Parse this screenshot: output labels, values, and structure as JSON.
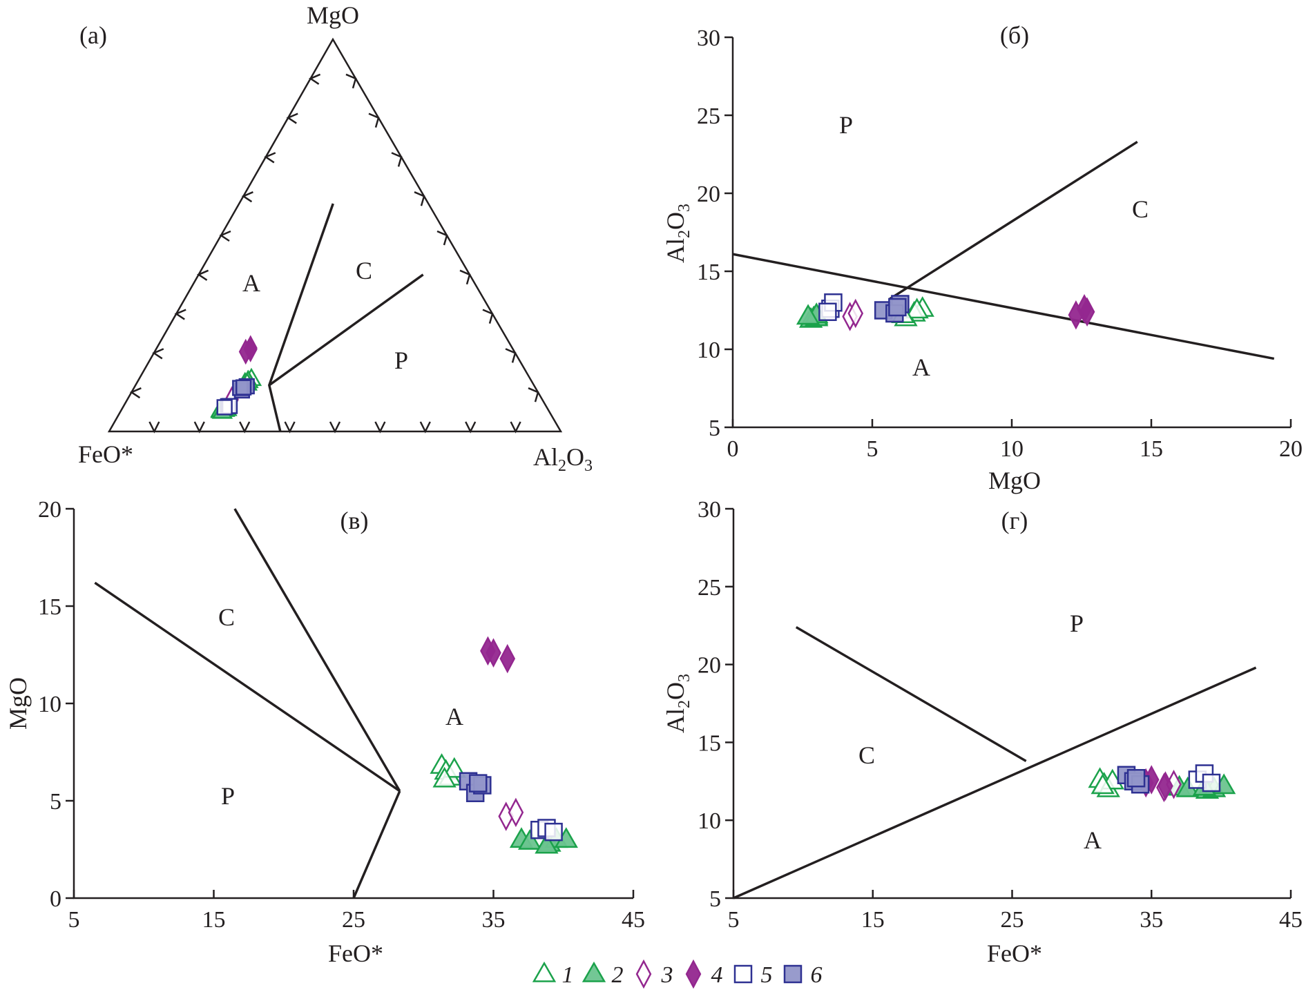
{
  "styles": {
    "green": "#1ba24b",
    "green_fill": "#6cc48f",
    "purple": "#93278f",
    "purple_fill": "#93278f",
    "blue": "#2e3192",
    "blue_fill": "#9296c9",
    "line": "#231f20"
  },
  "legend": [
    {
      "label": "1",
      "marker": "triangle",
      "filled": false,
      "color": "#1ba24b"
    },
    {
      "label": "2",
      "marker": "triangle",
      "filled": true,
      "color": "#1ba24b"
    },
    {
      "label": "3",
      "marker": "diamond",
      "filled": false,
      "color": "#93278f"
    },
    {
      "label": "4",
      "marker": "diamond",
      "filled": true,
      "color": "#93278f"
    },
    {
      "label": "5",
      "marker": "square",
      "filled": false,
      "color": "#2e3192"
    },
    {
      "label": "6",
      "marker": "square",
      "filled": true,
      "color": "#2e3192"
    }
  ],
  "chart_data": [
    {
      "type": "scatter",
      "subtype": "ternary",
      "panel_label": "(a)",
      "vertices": {
        "top": "MgO",
        "left": "FeO*",
        "right": "Al2O3"
      },
      "tick_interval": 0.1,
      "regions": [
        "A",
        "C",
        "P"
      ],
      "boundaries": [
        [
          [
            0.211,
            0.581,
            0.208
          ],
          [
            0.586,
            0.118,
            0.296
          ],
          [
            0.621,
            0.0,
            0.379
          ]
        ],
        [
          [
            0.586,
            0.118,
            0.296
          ],
          [
            0.103,
            0.4,
            0.497
          ]
        ]
      ],
      "boundary_order": [
        "FeO*",
        "MgO",
        "Al2O3"
      ]
    },
    {
      "type": "scatter",
      "panel_label": "(б)",
      "xlabel": "MgO",
      "ylabel": "Al2O3",
      "xlim": [
        0,
        20
      ],
      "ylim": [
        5,
        30
      ],
      "xticks": [
        "0",
        "5",
        "10",
        "15",
        "20"
      ],
      "yticks": [
        "5",
        "10",
        "15",
        "20",
        "25",
        "30"
      ],
      "x_var": "MgO",
      "y_var": "Al2O3",
      "regions": [
        "P",
        "C",
        "A"
      ],
      "boundaries": [
        [
          [
            0,
            16.1
          ],
          [
            19.4,
            9.4
          ]
        ],
        [
          [
            5.6,
            13.2
          ],
          [
            14.5,
            23.3
          ]
        ]
      ]
    },
    {
      "type": "scatter",
      "panel_label": "(в)",
      "xlabel": "FeO*",
      "ylabel": "MgO",
      "xlim": [
        5,
        45
      ],
      "ylim": [
        0,
        20
      ],
      "xticks": [
        "5",
        "15",
        "25",
        "35",
        "45"
      ],
      "yticks": [
        "0",
        "5",
        "10",
        "15",
        "20"
      ],
      "x_var": "FeO*",
      "y_var": "MgO",
      "regions": [
        "C",
        "P",
        "A"
      ],
      "boundaries": [
        [
          [
            6.5,
            16.2
          ],
          [
            28.3,
            5.5
          ]
        ],
        [
          [
            16.5,
            20
          ],
          [
            28.3,
            5.5
          ]
        ],
        [
          [
            28.3,
            5.5
          ],
          [
            25,
            0
          ]
        ]
      ]
    },
    {
      "type": "scatter",
      "panel_label": "(г)",
      "xlabel": "FeO*",
      "ylabel": "Al2O3",
      "xlim": [
        5,
        45
      ],
      "ylim": [
        5,
        30
      ],
      "xticks": [
        "5",
        "15",
        "25",
        "35",
        "45"
      ],
      "yticks": [
        "5",
        "10",
        "15",
        "20",
        "25",
        "30"
      ],
      "x_var": "FeO*",
      "y_var": "Al2O3",
      "regions": [
        "P",
        "C",
        "A"
      ],
      "boundaries": [
        [
          [
            5,
            5
          ],
          [
            42.5,
            19.8
          ]
        ],
        [
          [
            9.5,
            22.4
          ],
          [
            26,
            13.8
          ]
        ]
      ]
    }
  ],
  "samples_columns": [
    "FeO*",
    "MgO",
    "Al2O3"
  ],
  "samples": [
    {
      "group": "1",
      "points": [
        [
          31.3,
          6.8,
          12.6
        ],
        [
          31.6,
          6.5,
          12.3
        ],
        [
          31.9,
          6.2,
          12.0
        ],
        [
          32.2,
          6.6,
          12.5
        ],
        [
          31.5,
          6.1,
          12.2
        ]
      ]
    },
    {
      "group": "2",
      "points": [
        [
          37.0,
          3.0,
          12.1
        ],
        [
          37.6,
          2.9,
          12.0
        ],
        [
          39.0,
          2.8,
          11.9
        ],
        [
          39.5,
          3.0,
          12.0
        ],
        [
          40.2,
          3.0,
          12.2
        ],
        [
          38.8,
          2.7,
          12.1
        ]
      ]
    },
    {
      "group": "3",
      "points": [
        [
          35.9,
          4.2,
          12.1
        ],
        [
          36.6,
          4.4,
          12.3
        ]
      ]
    },
    {
      "group": "4",
      "points": [
        [
          34.6,
          12.7,
          12.4
        ],
        [
          35.0,
          12.6,
          12.6
        ],
        [
          36.0,
          12.3,
          12.2
        ]
      ]
    },
    {
      "group": "5",
      "points": [
        [
          38.3,
          3.5,
          12.6
        ],
        [
          38.8,
          3.6,
          13.0
        ],
        [
          39.3,
          3.4,
          12.4
        ]
      ]
    },
    {
      "group": "6",
      "points": [
        [
          33.2,
          6.0,
          12.9
        ],
        [
          33.7,
          5.4,
          12.5
        ],
        [
          34.2,
          5.8,
          12.3
        ],
        [
          33.9,
          5.9,
          12.7
        ]
      ]
    }
  ]
}
